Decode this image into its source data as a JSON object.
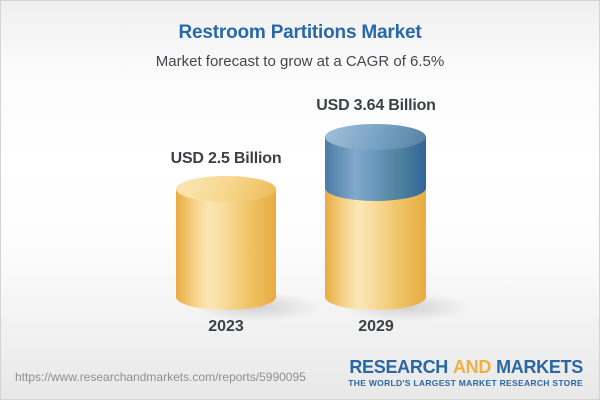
{
  "header": {
    "title": "Restroom Partitions Market",
    "subtitle": "Market forecast to grow at a CAGR of 6.5%"
  },
  "chart_data": {
    "type": "bar",
    "style": "3d-cylinder",
    "title": "Restroom Partitions Market",
    "categories": [
      "2023",
      "2029"
    ],
    "values": [
      2.5,
      3.64
    ],
    "value_labels": [
      "USD 2.5 Billion",
      "USD 3.64 Billion"
    ],
    "unit": "USD Billion",
    "cagr_percent": 6.5,
    "ylim": [
      0,
      4
    ],
    "legend": "none",
    "grid": false,
    "colors": {
      "base_segment_gold": "#f0c264",
      "growth_segment_blue": "#5688b4",
      "label_text": "#3c4145"
    }
  },
  "footer": {
    "url": "https://www.researchandmarkets.com/reports/5990095",
    "logo": {
      "word1": "RESEARCH",
      "word2": "AND",
      "word3": "MARKETS",
      "tagline": "THE WORLD'S LARGEST MARKET RESEARCH STORE"
    }
  },
  "colors": {
    "title_blue": "#2768ab",
    "logo_blue": "#2a67a5",
    "logo_gold": "#efb040"
  }
}
